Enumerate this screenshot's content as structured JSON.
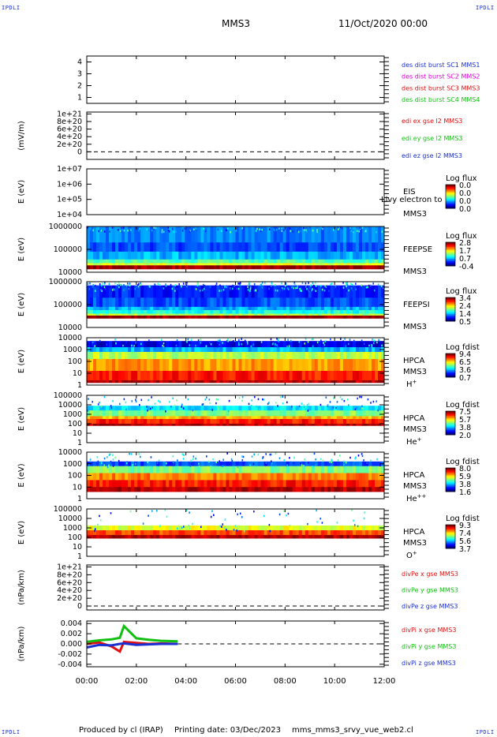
{
  "header": {
    "corner_label": "IPDLI",
    "spacecraft": "MMS3",
    "datetime": "11/Oct/2020 00:00"
  },
  "footer": {
    "produced_by": "Produced by cl (IRAP)",
    "printing_date": "Printing date: 03/Dec/2023",
    "filename": "mms_mms3_srvy_vue_web2.cl"
  },
  "colors": {
    "blue": "#1a2fd0",
    "magenta": "#e000e0",
    "red": "#e01010",
    "green": "#10c010",
    "dark_red": "#a00000"
  },
  "chart_data": [
    {
      "id": "des_dist",
      "type": "line",
      "ylim": [
        0.5,
        4.5
      ],
      "yticks": [
        "1",
        "2",
        "3",
        "4"
      ],
      "legend": [
        "des dist burst SC1 MMS1",
        "des dist burst SC2 MMS2",
        "des dist burst SC3 MMS3",
        "des dist burst SC4 MMS4"
      ],
      "legend_colors": [
        "#1a2fd0",
        "#e000e0",
        "#e01010",
        "#10c010"
      ],
      "series": []
    },
    {
      "id": "edi_e",
      "type": "line",
      "ylabel": "(mV/m)",
      "ylim": [
        -2e+20,
        1.05e+21
      ],
      "yticks": [
        "0",
        "2e+20",
        "4e+20",
        "6e+20",
        "8e+20",
        "1e+21"
      ],
      "legend": [
        "edi ex gse l2 MMS3",
        "edi ey gse l2 MMS3",
        "edi ez gse l2 MMS3"
      ],
      "legend_colors": [
        "#e01010",
        "#10c010",
        "#1a2fd0"
      ],
      "series": []
    },
    {
      "id": "eis",
      "type": "heatmap",
      "ylabel": "E (eV)",
      "yscale": "log",
      "ylim": [
        10000,
        10000000
      ],
      "yticks": [
        "1e+04",
        "1e+05",
        "1e+06",
        "1e+07"
      ],
      "name": "EIS",
      "overlay_label": "Livy electron to",
      "sc": "MMS3",
      "cbar_title": "Log flux",
      "cbar_ticks": [
        "0.0",
        "0.0",
        "0.0",
        "0.0"
      ]
    },
    {
      "id": "feepse",
      "type": "heatmap",
      "ylabel": "E (eV)",
      "yscale": "log",
      "ylim": [
        10000,
        1000000
      ],
      "yticks": [
        "10000",
        "100000",
        "1000000"
      ],
      "name": "FEEPSE",
      "sc": "MMS3",
      "cbar_title": "Log flux",
      "cbar_ticks": [
        "2.8",
        "1.7",
        "0.7",
        "-0.4"
      ]
    },
    {
      "id": "feepsi",
      "type": "heatmap",
      "ylabel": "E (eV)",
      "yscale": "log",
      "ylim": [
        10000,
        1000000
      ],
      "yticks": [
        "10000",
        "100000",
        "1000000"
      ],
      "name": "FEEPSI",
      "sc": "MMS3",
      "cbar_title": "Log flux",
      "cbar_ticks": [
        "3.4",
        "2.4",
        "1.4",
        "0.5"
      ]
    },
    {
      "id": "hpca_h",
      "type": "heatmap",
      "ylabel": "E (eV)",
      "yscale": "log",
      "ylim": [
        1,
        10000
      ],
      "yticks": [
        "1",
        "10",
        "100",
        "1000",
        "10000"
      ],
      "name": "HPCA",
      "sc": "MMS3",
      "species": "H",
      "species_sup": "+",
      "cbar_title": "Log fdist",
      "cbar_ticks": [
        "9.4",
        "6.5",
        "3.6",
        "0.7"
      ]
    },
    {
      "id": "hpca_he",
      "type": "heatmap",
      "ylabel": "E (eV)",
      "yscale": "log",
      "ylim": [
        1,
        100000
      ],
      "yticks": [
        "1",
        "10",
        "100",
        "1000",
        "10000",
        "100000"
      ],
      "name": "HPCA",
      "sc": "MMS3",
      "species": "He",
      "species_sup": "+",
      "cbar_title": "Log fdist",
      "cbar_ticks": [
        "7.5",
        "5.7",
        "3.8",
        "2.0"
      ]
    },
    {
      "id": "hpca_hepp",
      "type": "heatmap",
      "ylabel": "E (eV)",
      "yscale": "log",
      "ylim": [
        1,
        10000
      ],
      "yticks": [
        "1",
        "10",
        "100",
        "1000",
        "10000"
      ],
      "name": "HPCA",
      "sc": "MMS3",
      "species": "He",
      "species_sup": "++",
      "cbar_title": "Log fdist",
      "cbar_ticks": [
        "8.0",
        "5.9",
        "3.8",
        "1.6"
      ]
    },
    {
      "id": "hpca_o",
      "type": "heatmap",
      "ylabel": "E (eV)",
      "yscale": "log",
      "ylim": [
        1,
        100000
      ],
      "yticks": [
        "1",
        "10",
        "100",
        "1000",
        "10000",
        "100000"
      ],
      "name": "HPCA",
      "sc": "MMS3",
      "species": "O",
      "species_sup": "+",
      "cbar_title": "Log fdist",
      "cbar_ticks": [
        "9.3",
        "7.4",
        "5.6",
        "3.7"
      ]
    },
    {
      "id": "divpe",
      "type": "line",
      "ylabel": "(nPa/km)",
      "ylim": [
        -1e+20,
        1.05e+21
      ],
      "yticks": [
        "0",
        "2e+20",
        "4e+20",
        "6e+20",
        "8e+20",
        "1e+21"
      ],
      "legend": [
        "divPe x gse MMS3",
        "divPe y gse MMS3",
        "divPe z gse MMS3"
      ],
      "legend_colors": [
        "#e01010",
        "#10c010",
        "#1a2fd0"
      ],
      "series": []
    },
    {
      "id": "divpi",
      "type": "line",
      "ylabel": "(nPa/km)",
      "ylim": [
        -0.0045,
        0.0045
      ],
      "yticks": [
        "-0.004",
        "-0.002",
        "0.000",
        "0.002",
        "0.004"
      ],
      "legend": [
        "divPi x gse MMS3",
        "divPi y gse MMS3",
        "divPi z gse MMS3"
      ],
      "legend_colors": [
        "#e01010",
        "#10c010",
        "#1a2fd0"
      ],
      "data_end_time": "03:40",
      "series": [
        {
          "name": "divPi x gse MMS3",
          "x": [
            "00:00",
            "00:30",
            "01:00",
            "01:20",
            "01:30",
            "02:00",
            "02:30",
            "03:00",
            "03:40"
          ],
          "values": [
            0.0,
            0.0003,
            -0.0005,
            -0.0015,
            0.0004,
            0.0002,
            0.0,
            0.0001,
            0.0
          ]
        },
        {
          "name": "divPi y gse MMS3",
          "x": [
            "00:00",
            "00:30",
            "01:00",
            "01:20",
            "01:30",
            "02:00",
            "02:30",
            "03:00",
            "03:40"
          ],
          "values": [
            0.0004,
            0.0007,
            0.0009,
            0.0012,
            0.0035,
            0.0011,
            0.0008,
            0.0006,
            0.0005
          ]
        },
        {
          "name": "divPi z gse MMS3",
          "x": [
            "00:00",
            "00:30",
            "01:00",
            "01:20",
            "01:30",
            "02:00",
            "02:30",
            "03:00",
            "03:40"
          ],
          "values": [
            -0.0007,
            -0.0002,
            -0.0003,
            0.0,
            0.0001,
            -0.0002,
            -0.0001,
            0.0,
            0.0
          ]
        }
      ]
    }
  ],
  "time_axis": {
    "ticks": [
      "00:00",
      "02:00",
      "04:00",
      "06:00",
      "08:00",
      "10:00",
      "12:00"
    ]
  }
}
